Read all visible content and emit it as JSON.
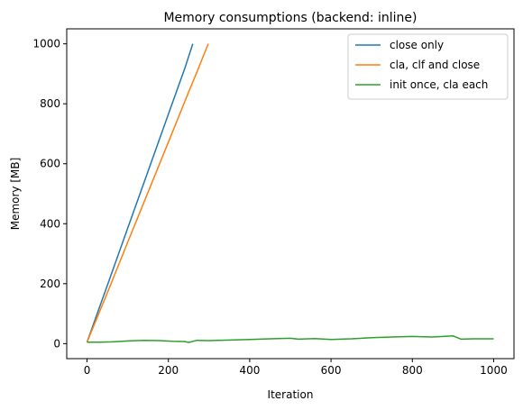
{
  "chart_data": {
    "type": "line",
    "title": "Memory consumptions (backend: inline)",
    "xlabel": "Iteration",
    "ylabel": "Memory [MB]",
    "xlim": [
      -50,
      1050
    ],
    "ylim": [
      -50,
      1050
    ],
    "xticks": [
      0,
      200,
      400,
      600,
      800,
      1000
    ],
    "yticks": [
      0,
      200,
      400,
      600,
      800,
      1000
    ],
    "grid": false,
    "legend_position": "top-right",
    "series": [
      {
        "name": "close only",
        "color": "#1f77b4",
        "x": [
          0,
          50,
          100,
          150,
          200,
          240,
          260
        ],
        "y": [
          5,
          195,
          385,
          575,
          765,
          917,
          1000
        ]
      },
      {
        "name": "cla, clf and close",
        "color": "#ff7f0e",
        "x": [
          0,
          50,
          100,
          150,
          200,
          250,
          270,
          298
        ],
        "y": [
          5,
          170,
          338,
          505,
          672,
          840,
          905,
          1000
        ]
      },
      {
        "name": "init once, cla each",
        "color": "#2ca02c",
        "x": [
          0,
          30,
          60,
          100,
          140,
          180,
          210,
          240,
          250,
          270,
          300,
          350,
          400,
          450,
          500,
          520,
          560,
          600,
          650,
          700,
          750,
          800,
          850,
          900,
          920,
          950,
          1000
        ],
        "y": [
          5,
          5,
          6,
          9,
          11,
          10,
          8,
          7,
          4,
          11,
          10,
          12,
          14,
          16,
          18,
          15,
          17,
          14,
          16,
          20,
          22,
          24,
          22,
          26,
          15,
          16,
          16
        ]
      }
    ]
  }
}
